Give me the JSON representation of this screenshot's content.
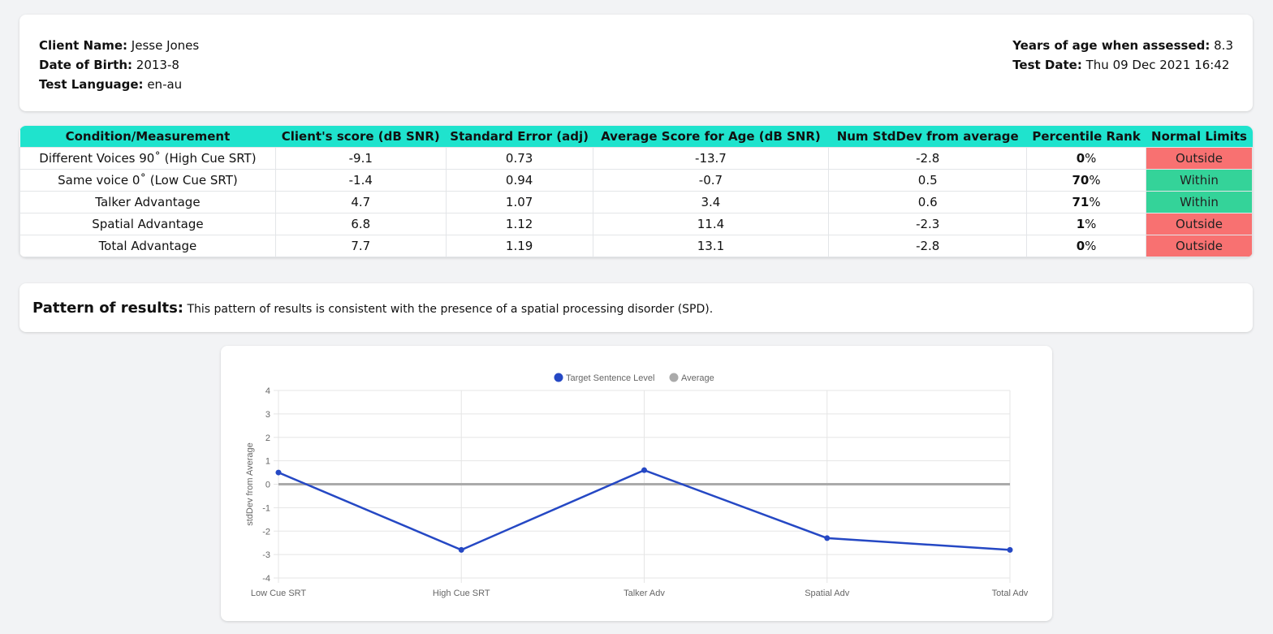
{
  "info": {
    "client_name_label": "Client Name:",
    "client_name": "Jesse Jones",
    "dob_label": "Date of Birth:",
    "dob": "2013-8",
    "lang_label": "Test Language:",
    "lang": "en-au",
    "age_label": "Years of age when assessed:",
    "age": "8.3",
    "date_label": "Test Date:",
    "date": "Thu 09 Dec 2021 16:42"
  },
  "table": {
    "headers": [
      "Condition/Measurement",
      "Client's score (dB SNR)",
      "Standard Error (adj)",
      "Average Score for Age (dB SNR)",
      "Num StdDev from average",
      "Percentile Rank",
      "Normal Limits"
    ],
    "rows": [
      [
        "Different Voices 90˚ (High Cue SRT)",
        "-9.1",
        "0.73",
        "-13.7",
        "-2.8",
        "0",
        "Outside"
      ],
      [
        "Same voice 0˚ (Low Cue SRT)",
        "-1.4",
        "0.94",
        "-0.7",
        "0.5",
        "70",
        "Within"
      ],
      [
        "Talker Advantage",
        "4.7",
        "1.07",
        "3.4",
        "0.6",
        "71",
        "Within"
      ],
      [
        "Spatial Advantage",
        "6.8",
        "1.12",
        "11.4",
        "-2.3",
        "1",
        "Outside"
      ],
      [
        "Total Advantage",
        "7.7",
        "1.19",
        "13.1",
        "-2.8",
        "0",
        "Outside"
      ]
    ],
    "percent": "%"
  },
  "pattern": {
    "label": "Pattern of results:",
    "text": "This pattern of results is consistent with the presence of a spatial processing disorder (SPD)."
  },
  "chart_data": {
    "type": "line",
    "categories": [
      "Low Cue SRT",
      "High Cue SRT",
      "Talker Adv",
      "Spatial Adv",
      "Total Adv"
    ],
    "series": [
      {
        "name": "Target Sentence Level",
        "color": "#2548c4",
        "values": [
          0.5,
          -2.8,
          0.6,
          -2.3,
          -2.8
        ]
      },
      {
        "name": "Average",
        "color": "#aaaaaa",
        "values": [
          0,
          0,
          0,
          0,
          0
        ]
      }
    ],
    "ylabel": "stdDev from Average",
    "ylim": [
      -4,
      4
    ],
    "yticks": [
      "4",
      "3",
      "2",
      "1",
      "0",
      "-1",
      "-2",
      "-3",
      "-4"
    ],
    "legend": "top"
  }
}
